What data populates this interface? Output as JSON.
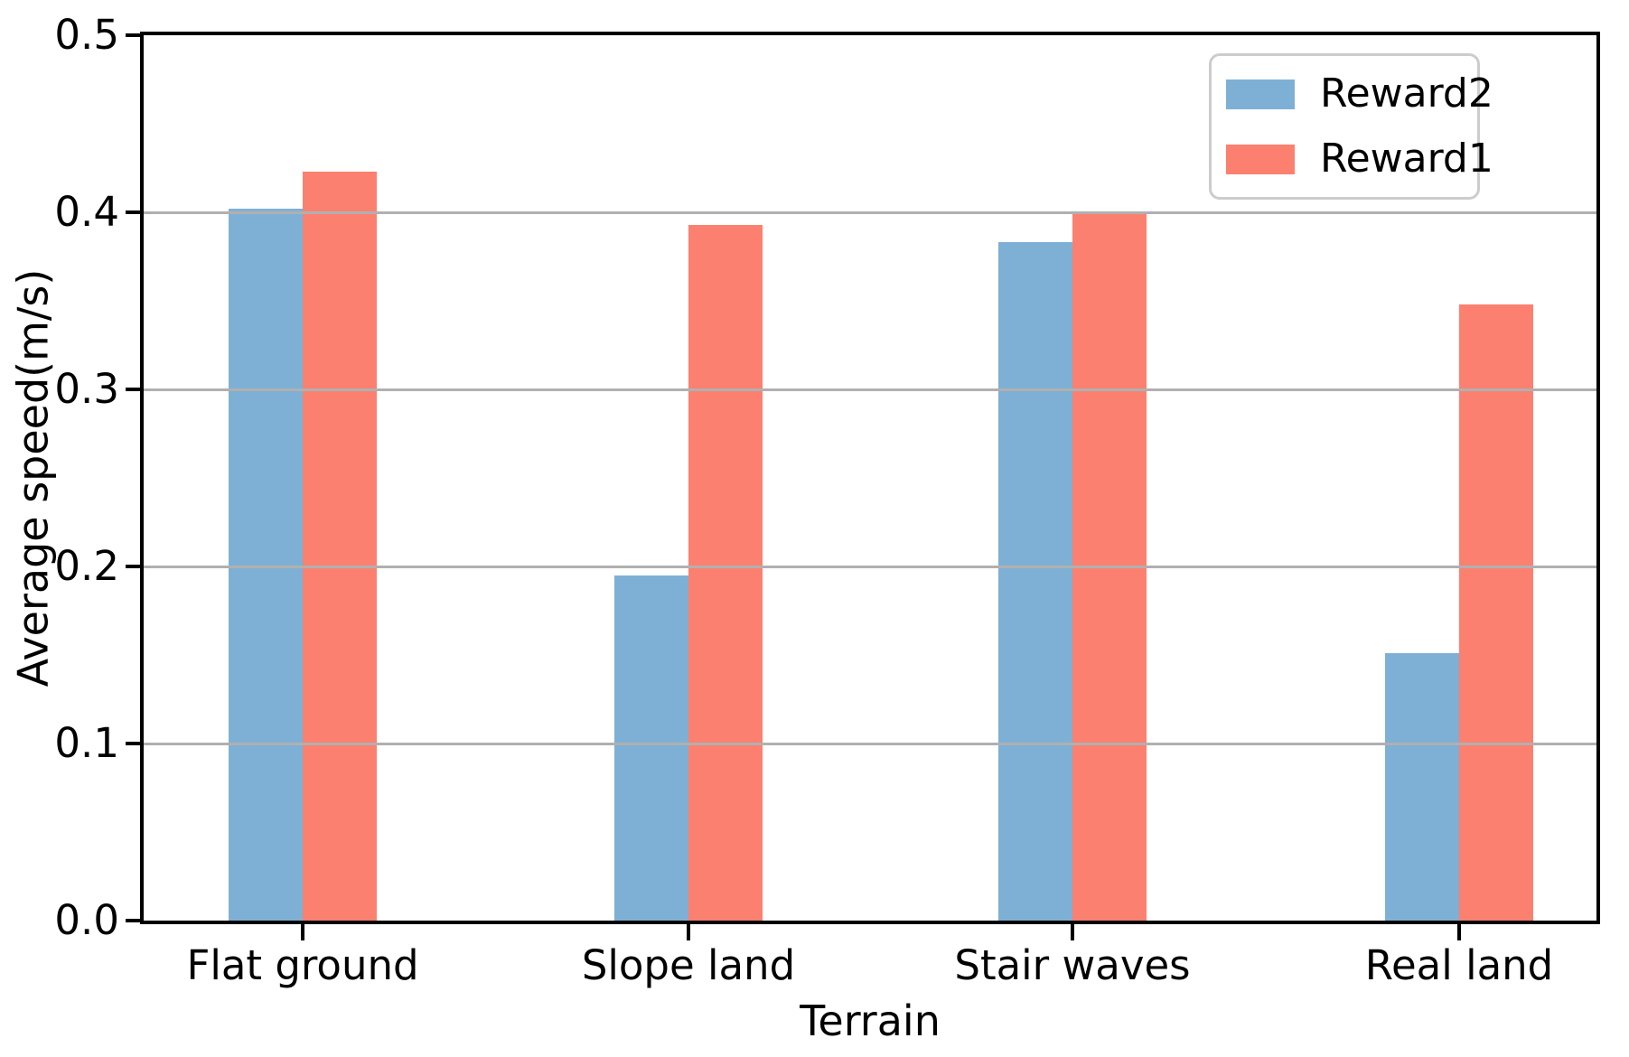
{
  "chart_data": {
    "type": "bar",
    "title": "",
    "xlabel": "Terrain",
    "ylabel": "Average speed(m/s)",
    "categories": [
      "Flat ground",
      "Slope land",
      "Stair waves",
      "Real land"
    ],
    "series": [
      {
        "name": "Reward2",
        "color": "#7eb0d5",
        "values": [
          0.402,
          0.195,
          0.383,
          0.151
        ]
      },
      {
        "name": "Reward1",
        "color": "#fc8070",
        "values": [
          0.423,
          0.393,
          0.399,
          0.348
        ]
      }
    ],
    "ylim": [
      0.0,
      0.5
    ],
    "yticks": [
      "0.0",
      "0.1",
      "0.2",
      "0.3",
      "0.4",
      "0.5"
    ],
    "grid": "horizontal",
    "grid_color": "#b0b0b0",
    "axis_color": "#000000",
    "legend_position": "upper right",
    "legend_border_color": "#cccccc"
  }
}
